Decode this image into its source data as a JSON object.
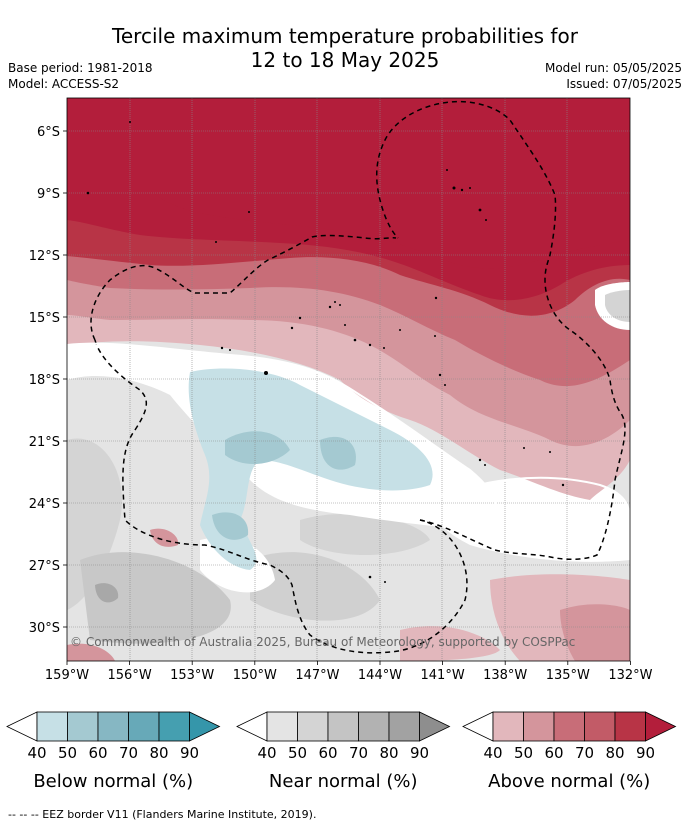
{
  "title_line1": "Tercile maximum temperature probabilities for",
  "title_line2": "12 to 18 May 2025",
  "meta": {
    "base_period": "Base period: 1981-2018",
    "model": "Model: ACCESS-S2",
    "model_run": "Model run: 05/05/2025",
    "issued": "Issued: 07/05/2025"
  },
  "map": {
    "lat_labels": [
      "6°S",
      "9°S",
      "12°S",
      "15°S",
      "18°S",
      "21°S",
      "24°S",
      "27°S",
      "30°S"
    ],
    "lon_labels": [
      "159°W",
      "156°W",
      "153°W",
      "150°W",
      "147°W",
      "144°W",
      "141°W",
      "138°W",
      "135°W",
      "132°W"
    ],
    "copyright": "© Commonwealth of Australia 2025, Bureau of Meteorology, supported by COSPPac"
  },
  "legends": [
    {
      "title": "Below normal (%)",
      "ticks": [
        "40",
        "50",
        "60",
        "70",
        "80",
        "90"
      ],
      "colors": [
        "#ffffff",
        "#c6e0e6",
        "#a4c9d1",
        "#86b7c3",
        "#67a9b8",
        "#459fb0",
        "#3596aa"
      ]
    },
    {
      "title": "Near normal (%)",
      "ticks": [
        "40",
        "50",
        "60",
        "70",
        "80",
        "90"
      ],
      "colors": [
        "#ffffff",
        "#e4e4e4",
        "#d4d4d4",
        "#c4c4c4",
        "#b2b2b2",
        "#a2a2a2",
        "#8e8e8e"
      ]
    },
    {
      "title": "Above normal (%)",
      "ticks": [
        "40",
        "50",
        "60",
        "70",
        "80",
        "90"
      ],
      "colors": [
        "#ffffff",
        "#e2b7bc",
        "#d4959c",
        "#c86d78",
        "#c25b67",
        "#b83446",
        "#b31e3b"
      ]
    }
  ],
  "footnote": "--  --  -- EEZ border V11 (Flanders Marine Institute, 2019)."
}
